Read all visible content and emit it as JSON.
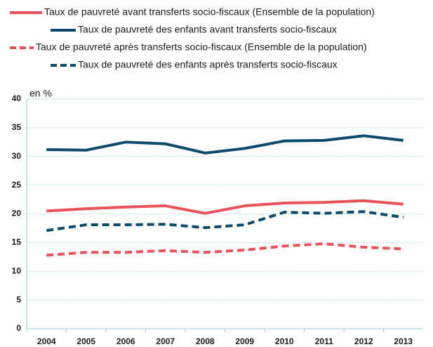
{
  "chart_data": {
    "type": "line",
    "y_unit_label": "en %",
    "categories": [
      "2004",
      "2005",
      "2006",
      "2007",
      "2008",
      "2009",
      "2010",
      "2011",
      "2012",
      "2013"
    ],
    "series": [
      {
        "name": "Taux de pauvreté avant transferts socio-fiscaux (Ensemble de la population)",
        "color": "#e8525a",
        "dashed": false,
        "values": [
          20.5,
          20.9,
          21.2,
          21.4,
          20.1,
          21.4,
          21.9,
          22.0,
          22.3,
          21.7
        ]
      },
      {
        "name": "Taux de pauvreté des enfants avant transferts socio-fiscaux",
        "color": "#0b4a6b",
        "dashed": false,
        "values": [
          31.2,
          31.1,
          32.5,
          32.2,
          30.6,
          31.4,
          32.7,
          32.8,
          33.6,
          32.8
        ]
      },
      {
        "name": "Taux de pauvreté après transferts socio-fiscaux  (Ensemble de la population)",
        "color": "#e8525a",
        "dashed": true,
        "values": [
          12.8,
          13.3,
          13.3,
          13.6,
          13.3,
          13.7,
          14.4,
          14.8,
          14.2,
          13.9
        ]
      },
      {
        "name": "Taux de pauvreté des enfants après transferts socio-fiscaux",
        "color": "#0b4a6b",
        "dashed": true,
        "values": [
          17.1,
          18.1,
          18.1,
          18.2,
          17.6,
          18.1,
          20.3,
          20.1,
          20.4,
          19.4
        ]
      }
    ],
    "ylim": [
      0,
      40
    ],
    "yticks": [
      0,
      5,
      10,
      15,
      20,
      25,
      30,
      35,
      40
    ],
    "grid": true
  }
}
